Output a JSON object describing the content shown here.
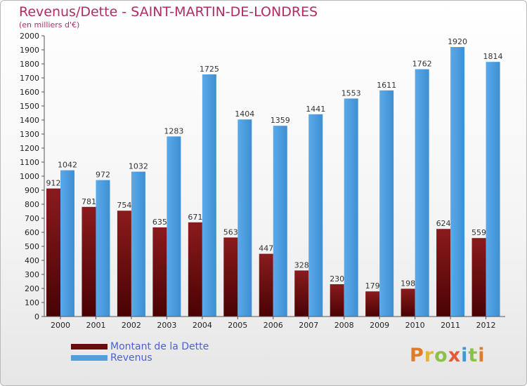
{
  "chart_title": "Revenus/Dette - SAINT-MARTIN-DE-LONDRES",
  "chart_subtitle": "(en milliers d'€)",
  "brand_logo": "Proxiti",
  "colors": {
    "debt": "#6b0a0c",
    "revenue": "#4f9fe0",
    "title": "#b02c64",
    "legend_text": "#4b5fd4"
  },
  "chart_data": {
    "type": "bar",
    "categories": [
      "2000",
      "2001",
      "2002",
      "2003",
      "2004",
      "2005",
      "2006",
      "2007",
      "2008",
      "2009",
      "2010",
      "2011",
      "2012"
    ],
    "series": [
      {
        "name": "Montant de la Dette",
        "values": [
          912,
          781,
          754,
          635,
          671,
          563,
          447,
          328,
          230,
          179,
          198,
          624,
          559
        ]
      },
      {
        "name": "Revenus",
        "values": [
          1042,
          972,
          1032,
          1283,
          1725,
          1404,
          1359,
          1441,
          1553,
          1611,
          1762,
          1920,
          1814
        ]
      }
    ],
    "ylim": [
      0,
      2000
    ],
    "yticks": [
      0,
      100,
      200,
      300,
      400,
      500,
      600,
      700,
      800,
      900,
      1000,
      1100,
      1200,
      1300,
      1400,
      1500,
      1600,
      1700,
      1800,
      1900,
      2000
    ],
    "grid": false,
    "legend_position": "bottom-left"
  }
}
